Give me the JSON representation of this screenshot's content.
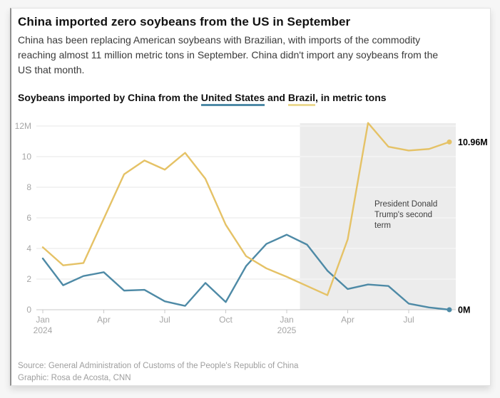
{
  "header": {
    "title": "China imported zero soybeans from the US in September",
    "description_lines": [
      "China has been replacing American soybeans with Brazilian, with imports of the commodity",
      "reaching almost 11 million metric tons in September. China didn't import any soybeans from the",
      "US that month."
    ]
  },
  "chart_title": {
    "prefix": "Soybeans imported by China from the ",
    "us_label": "United States",
    "conjunction": " and ",
    "brazil_label": "Brazil",
    "suffix": ", in metric tons"
  },
  "footer": {
    "source": "Source: General Administration of Customs of the People's Republic of China",
    "credit": "Graphic: Rosa de Acosta, CNN"
  },
  "colors": {
    "us_line": "#4E8AA6",
    "brazil_line": "#E5C266",
    "us_underline": "#4E8AA6",
    "brazil_underline": "#EBD992",
    "shade": "#ECECEC",
    "shade_gridline": "#FAFAFA",
    "grid": "#E7E7E7",
    "axis": "#C9C9C9",
    "tick_label": "#A6A6A6",
    "annotation": "#3F3F3F",
    "end_label": "#000000"
  },
  "chart_data": {
    "type": "line",
    "title": "Soybeans imported by China from the United States and Brazil, in metric tons",
    "unit": "million metric tons",
    "ylim": [
      0,
      12
    ],
    "grid": true,
    "x": [
      "Jan 2024",
      "Feb 2024",
      "Mar 2024",
      "Apr 2024",
      "May 2024",
      "Jun 2024",
      "Jul 2024",
      "Aug 2024",
      "Sep 2024",
      "Oct 2024",
      "Nov 2024",
      "Dec 2024",
      "Jan 2025",
      "Feb 2025",
      "Mar 2025",
      "Apr 2025",
      "May 2025",
      "Jun 2025",
      "Jul 2025",
      "Aug 2025",
      "Sep 2025"
    ],
    "series": [
      {
        "name": "United States",
        "color": "#4E8AA6",
        "end_label": "0M",
        "values": [
          3.35,
          1.6,
          2.2,
          2.45,
          1.25,
          1.3,
          0.55,
          0.25,
          1.75,
          0.5,
          2.85,
          4.3,
          4.9,
          4.25,
          2.55,
          1.35,
          1.65,
          1.55,
          0.4,
          0.15,
          0
        ]
      },
      {
        "name": "Brazil",
        "color": "#E5C266",
        "end_label": "10.96M",
        "values": [
          4.08,
          2.9,
          3.05,
          5.95,
          8.85,
          9.75,
          9.15,
          10.25,
          8.55,
          5.55,
          3.5,
          2.7,
          2.15,
          1.55,
          0.95,
          4.6,
          12.2,
          10.65,
          10.4,
          10.5,
          10.96
        ]
      }
    ],
    "yticks": [
      {
        "value": 12,
        "label": "12M"
      },
      {
        "value": 10,
        "label": "10"
      },
      {
        "value": 8,
        "label": "8"
      },
      {
        "value": 6,
        "label": "6"
      },
      {
        "value": 4,
        "label": "4"
      },
      {
        "value": 2,
        "label": "2"
      },
      {
        "value": 0,
        "label": "0"
      }
    ],
    "xticks": [
      {
        "index": 0,
        "label": "Jan",
        "sublabel": "2024"
      },
      {
        "index": 3,
        "label": "Apr"
      },
      {
        "index": 6,
        "label": "Jul"
      },
      {
        "index": 9,
        "label": "Oct"
      },
      {
        "index": 12,
        "label": "Jan",
        "sublabel": "2025"
      },
      {
        "index": 15,
        "label": "Apr"
      },
      {
        "index": 18,
        "label": "Jul"
      }
    ],
    "shaded_region": {
      "start_index": 12.65,
      "label": "President Donald Trump's second term"
    },
    "annotation": {
      "lines": [
        "President Donald",
        "Trump's second",
        "term"
      ]
    }
  }
}
